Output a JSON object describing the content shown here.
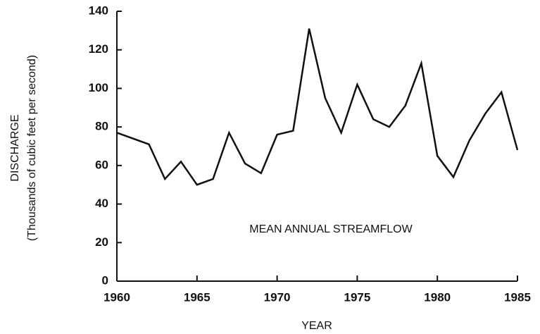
{
  "chart_data": {
    "type": "line",
    "annotation": "MEAN ANNUAL STREAMFLOW",
    "xlabel": "YEAR",
    "ylabel": "DISCHARGE",
    "ylabel_sub": "(Thousands of cubic feet per second)",
    "x": [
      1960,
      1961,
      1962,
      1963,
      1964,
      1965,
      1966,
      1967,
      1968,
      1969,
      1970,
      1971,
      1972,
      1973,
      1974,
      1975,
      1976,
      1977,
      1978,
      1979,
      1980,
      1981,
      1982,
      1983,
      1984,
      1985
    ],
    "series": [
      {
        "name": "Mean annual streamflow",
        "color": "#111111",
        "values": [
          77,
          74,
          71,
          53,
          62,
          50,
          53,
          77,
          61,
          56,
          76,
          78,
          131,
          95,
          77,
          102,
          84,
          80,
          91,
          113,
          65,
          54,
          73,
          87,
          98,
          68
        ]
      }
    ],
    "xlim": [
      1960,
      1985
    ],
    "xticks": [
      1960,
      1965,
      1970,
      1975,
      1980,
      1985
    ],
    "ylim": [
      0,
      140
    ],
    "yticks": [
      0,
      20,
      40,
      60,
      80,
      100,
      120,
      140
    ]
  }
}
